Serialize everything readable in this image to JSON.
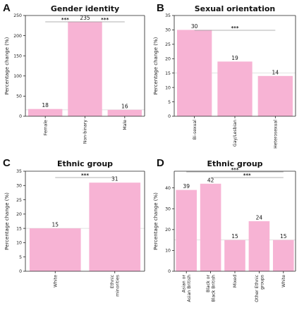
{
  "chart_data": [
    {
      "panel_letter": "A",
      "type": "bar",
      "title": "Gender identity",
      "ylabel": "Percentage change (%)",
      "categories": [
        "Female",
        "Non-binary",
        "Male"
      ],
      "values": [
        18,
        235,
        16
      ],
      "value_labels": [
        "18",
        "235",
        "16"
      ],
      "ylim": [
        0,
        250
      ],
      "yticks": [
        0,
        50,
        100,
        150,
        200,
        250
      ],
      "reference_line": 16,
      "significance": [
        {
          "from": 0,
          "to": 1,
          "label": "***"
        },
        {
          "from": 1,
          "to": 2,
          "label": "***"
        }
      ],
      "color": "#f7b3d4"
    },
    {
      "panel_letter": "B",
      "type": "bar",
      "title": "Sexual orientation",
      "ylabel": "Percentage change (%)",
      "categories": [
        "Bi-sexual",
        "Gay/Lesbian",
        "Heterosexual"
      ],
      "values": [
        30,
        19,
        14
      ],
      "value_labels": [
        "30",
        "19",
        "14"
      ],
      "ylim": [
        0,
        35
      ],
      "yticks": [
        0,
        5,
        10,
        15,
        20,
        25,
        30,
        35
      ],
      "reference_line": 15,
      "significance": [
        {
          "from": 0,
          "to": 2,
          "label": "***"
        }
      ],
      "color": "#f7b3d4"
    },
    {
      "panel_letter": "C",
      "type": "bar",
      "title": "Ethnic group",
      "ylabel": "Percentage change (%)",
      "categories": [
        "White",
        "Ethnic minorities"
      ],
      "values": [
        15,
        31
      ],
      "value_labels": [
        "15",
        "31"
      ],
      "ylim": [
        0,
        35
      ],
      "yticks": [
        0,
        5,
        10,
        15,
        20,
        25,
        30,
        35
      ],
      "reference_line": 15,
      "significance": [
        {
          "from": 0,
          "to": 1,
          "label": "***"
        }
      ],
      "color": "#f7b3d4"
    },
    {
      "panel_letter": "D",
      "type": "bar",
      "title": "Ethnic group",
      "ylabel": "Percentage change (%)",
      "categories": [
        "Asian or Asian British",
        "Black or Black British",
        "Mixed",
        "Other Ethnic groups",
        "White"
      ],
      "values": [
        39,
        42,
        15,
        24,
        15
      ],
      "value_labels": [
        "39",
        "42",
        "15",
        "24",
        "15"
      ],
      "ylim": [
        0,
        48
      ],
      "yticks": [
        0,
        10,
        20,
        30,
        40
      ],
      "reference_line": 15,
      "significance": [
        {
          "from": 0,
          "to": 4,
          "label": "***"
        },
        {
          "from": 1,
          "to": 4,
          "label": "***"
        }
      ],
      "color": "#f7b3d4"
    }
  ]
}
